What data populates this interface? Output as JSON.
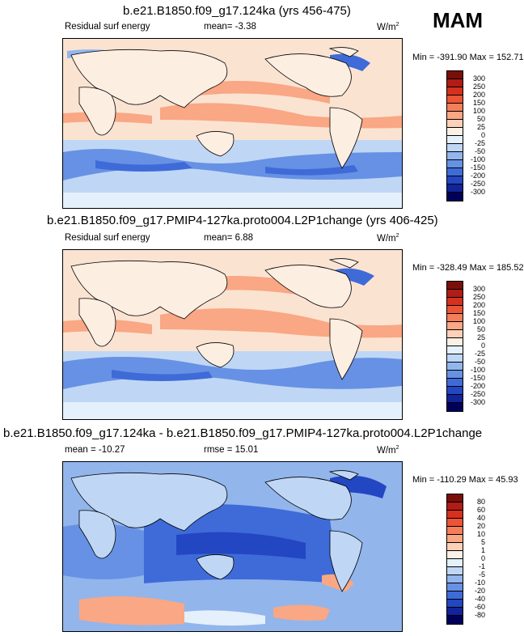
{
  "season": "MAM",
  "panels": [
    {
      "title": "b.e21.B1850.f09_g17.124ka (yrs 456-475)",
      "left_label": "Residual surf energy",
      "mid_label": "mean=  -3.38",
      "units": "W/m",
      "units_sup": "2",
      "minmax": "Min = -391.90 Max = 152.71",
      "colorbar": {
        "ticks": [
          "300",
          "250",
          "200",
          "150",
          "100",
          "50",
          "25",
          "0",
          "-25",
          "-50",
          "-100",
          "-150",
          "-200",
          "-250",
          "-300"
        ],
        "colors": [
          "#7a0f0a",
          "#b01c16",
          "#d6301f",
          "#ec5436",
          "#f57e5a",
          "#f9a784",
          "#fcd1b8",
          "#fbf0e6",
          "#e4f0fb",
          "#bfd7f5",
          "#92b5ec",
          "#6791e4",
          "#3f6bd9",
          "#2346c2",
          "#11249a",
          "#00005a"
        ]
      }
    },
    {
      "title": "b.e21.B1850.f09_g17.PMIP4-127ka.proto004.L2P1change (yrs 406-425)",
      "left_label": "Residual surf energy",
      "mid_label": "mean=  6.88",
      "units": "W/m",
      "units_sup": "2",
      "minmax": "Min = -328.49 Max = 185.52",
      "colorbar": {
        "ticks": [
          "300",
          "250",
          "200",
          "150",
          "100",
          "50",
          "25",
          "0",
          "-25",
          "-50",
          "-100",
          "-150",
          "-200",
          "-250",
          "-300"
        ],
        "colors": [
          "#7a0f0a",
          "#b01c16",
          "#d6301f",
          "#ec5436",
          "#f57e5a",
          "#f9a784",
          "#fcd1b8",
          "#fbf0e6",
          "#e4f0fb",
          "#bfd7f5",
          "#92b5ec",
          "#6791e4",
          "#3f6bd9",
          "#2346c2",
          "#11249a",
          "#00005a"
        ]
      }
    },
    {
      "title": "b.e21.B1850.f09_g17.124ka - b.e21.B1850.f09_g17.PMIP4-127ka.proto004.L2P1change",
      "left_label": "mean = -10.27",
      "mid_label": "rmse =  15.01",
      "units": "W/m",
      "units_sup": "2",
      "minmax": "Min = -110.29 Max =  45.93",
      "colorbar": {
        "ticks": [
          "80",
          "60",
          "40",
          "20",
          "10",
          "5",
          "1",
          "0",
          "-1",
          "-5",
          "-10",
          "-20",
          "-40",
          "-60",
          "-80"
        ],
        "colors": [
          "#7a0f0a",
          "#b01c16",
          "#d6301f",
          "#ec5436",
          "#f57e5a",
          "#f9a784",
          "#fcd1b8",
          "#fbf0e6",
          "#e4f0fb",
          "#bfd7f5",
          "#92b5ec",
          "#6791e4",
          "#3f6bd9",
          "#2346c2",
          "#11249a",
          "#00005a"
        ]
      }
    }
  ]
}
